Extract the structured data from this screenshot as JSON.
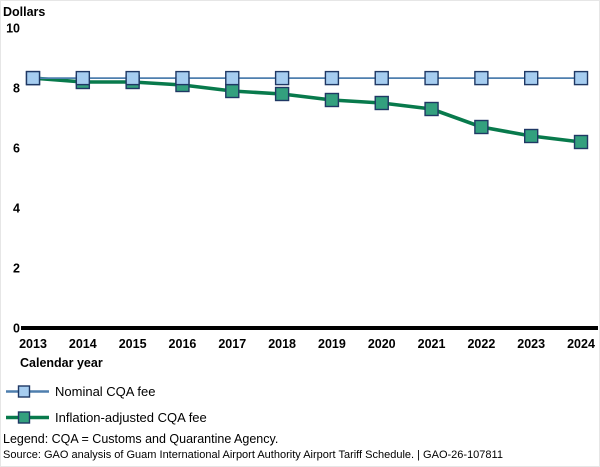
{
  "chart_data": {
    "type": "line",
    "title": "",
    "ylabel": "Dollars",
    "xlabel": "Calendar year",
    "x": [
      2013,
      2014,
      2015,
      2016,
      2017,
      2018,
      2019,
      2020,
      2021,
      2022,
      2023,
      2024
    ],
    "ylim": [
      0,
      10
    ],
    "yticks": [
      0,
      2,
      4,
      6,
      8,
      10
    ],
    "grid": false,
    "legend_position": "below-left",
    "series": [
      {
        "name": "Nominal CQA fee",
        "values": [
          8.33,
          8.33,
          8.33,
          8.33,
          8.33,
          8.33,
          8.33,
          8.33,
          8.33,
          8.33,
          8.33,
          8.33
        ],
        "line_color": "#4e7fae",
        "line_width": 1.8,
        "marker": "square",
        "marker_fill": "#a6cdf0",
        "marker_edge": "#1f3864"
      },
      {
        "name": "Inflation-adjusted CQA fee",
        "values": [
          8.33,
          8.2,
          8.2,
          8.1,
          7.9,
          7.8,
          7.6,
          7.5,
          7.3,
          6.7,
          6.4,
          6.2
        ],
        "line_color": "#087a4c",
        "line_width": 3.6,
        "marker": "square",
        "marker_fill": "#33a07e",
        "marker_edge": "#1f3864"
      }
    ],
    "axis_color": "#000000"
  },
  "footer": {
    "legend_note": "Legend: CQA = Customs and Quarantine Agency.",
    "source": "Source: GAO analysis of Guam International Airport Authority Airport Tariff Schedule.  |  GAO-26-107811"
  }
}
